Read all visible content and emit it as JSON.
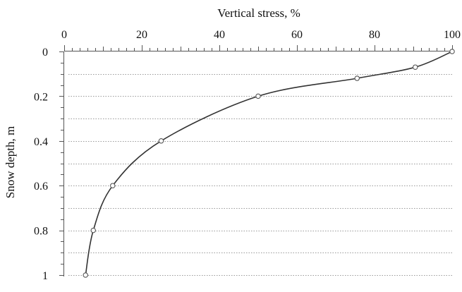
{
  "chart_data": {
    "type": "line",
    "xlabel": "Vertical stress, %",
    "ylabel": "Snow depth, m",
    "x_axis_position": "top",
    "y_axis_inverted": true,
    "xlim": [
      0,
      100
    ],
    "ylim": [
      0,
      1
    ],
    "x_ticks": [
      0,
      20,
      40,
      60,
      80,
      100
    ],
    "x_tick_labels": [
      "0",
      "20",
      "40",
      "60",
      "80",
      "100"
    ],
    "y_ticks": [
      0,
      0.2,
      0.4,
      0.6,
      0.8,
      1
    ],
    "y_tick_labels": [
      "0",
      "0.2",
      "0.4",
      "0.6",
      "0.8",
      "1"
    ],
    "grid": "horizontal dotted every 0.1 m",
    "series": [
      {
        "points": [
          {
            "x": 100,
            "y": 0.0
          },
          {
            "x": 90.5,
            "y": 0.07
          },
          {
            "x": 75.5,
            "y": 0.12
          },
          {
            "x": 50,
            "y": 0.2
          },
          {
            "x": 25,
            "y": 0.4
          },
          {
            "x": 12.5,
            "y": 0.6
          },
          {
            "x": 7.5,
            "y": 0.8
          },
          {
            "x": 5.5,
            "y": 1.0
          }
        ],
        "markers": [
          {
            "x": 100,
            "y": 0.0
          },
          {
            "x": 90.5,
            "y": 0.07
          },
          {
            "x": 75.5,
            "y": 0.12
          },
          {
            "x": 50,
            "y": 0.2
          },
          {
            "x": 25,
            "y": 0.4
          },
          {
            "x": 12.5,
            "y": 0.6
          },
          {
            "x": 7.5,
            "y": 0.8
          },
          {
            "x": 5.5,
            "y": 1.0
          }
        ]
      }
    ]
  }
}
